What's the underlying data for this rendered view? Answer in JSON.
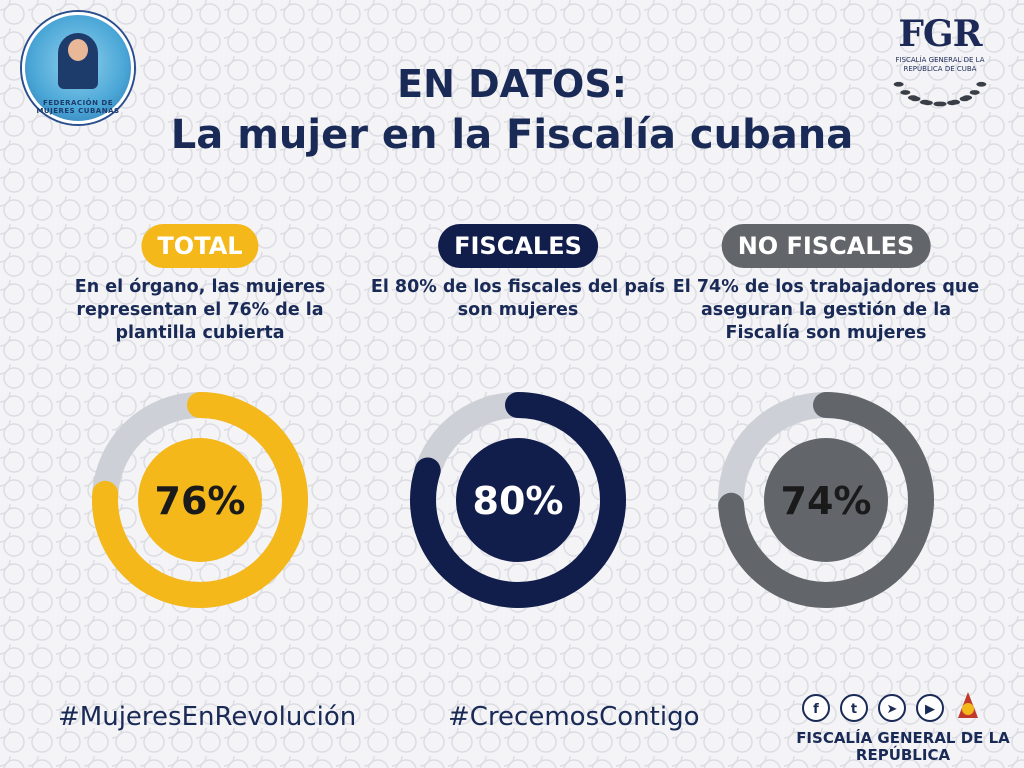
{
  "header": {
    "title_line1": "EN DATOS:",
    "title_line2": "La mujer en la Fiscalía cubana"
  },
  "logos": {
    "left_ring_text": "FEDERACIÓN DE MUJERES CUBANAS",
    "right_mark": "FGR",
    "right_sub": "FISCALÍA GENERAL DE LA REPÚBLICA DE CUBA"
  },
  "chart_data": [
    {
      "type": "pie",
      "label": "TOTAL",
      "description": "En el órgano, las mujeres representan el 76% de la plantilla cubierta",
      "value": 76,
      "display": "76%",
      "color": "#f5b81a",
      "text_color": "#1a1a1a"
    },
    {
      "type": "pie",
      "label": "FISCALES",
      "description": "El 80% de los fiscales del país son mujeres",
      "value": 80,
      "display": "80%",
      "color": "#111d4a",
      "text_color": "#ffffff"
    },
    {
      "type": "pie",
      "label": "NO FISCALES",
      "description": "El 74% de los trabajadores que aseguran la gestión de la Fiscalía son mujeres",
      "value": 74,
      "display": "74%",
      "color": "#62666b",
      "text_color": "#1a1a1a"
    }
  ],
  "colors": {
    "track": "#cdd0d6",
    "title": "#1a2a56"
  },
  "footer": {
    "hashtag1": "#MujeresEnRevolución",
    "hashtag2": "#CrecemosContigo",
    "org_name": "FISCALÍA GENERAL DE LA REPÚBLICA",
    "social_icons": [
      "facebook-icon",
      "twitter-icon",
      "telegram-icon",
      "youtube-icon",
      "brand-icon"
    ]
  }
}
